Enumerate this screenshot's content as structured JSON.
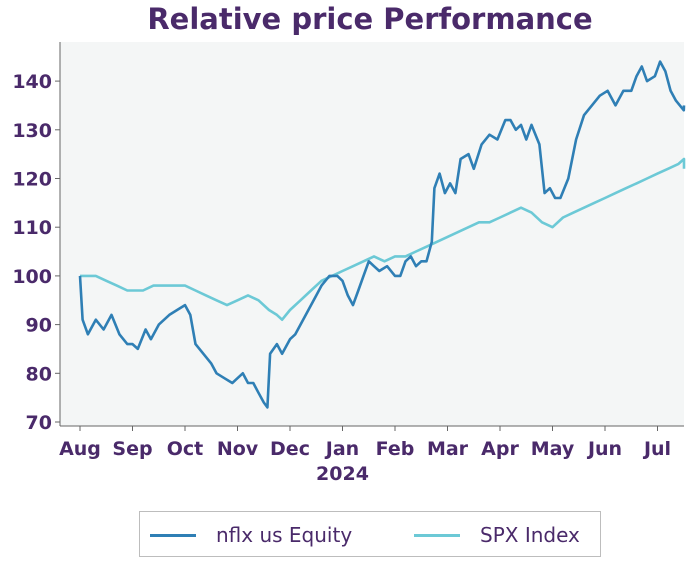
{
  "chart_data": {
    "type": "line",
    "title": "Relative price Performance",
    "xlabel": "",
    "ylabel": "",
    "ylim": [
      70,
      145
    ],
    "yticks": [
      70,
      80,
      90,
      100,
      110,
      120,
      130,
      140
    ],
    "x_ticks": [
      "Aug",
      "Sep",
      "Oct",
      "Nov",
      "Dec",
      "Jan",
      "Feb",
      "Mar",
      "Apr",
      "May",
      "Jun",
      "Jul"
    ],
    "x_year_label": "2024",
    "grid": false,
    "legend": "bottom-center",
    "series": [
      {
        "name": "nflx us Equity",
        "color": "#2f7fb5",
        "points": [
          [
            0,
            100
          ],
          [
            0.05,
            91
          ],
          [
            0.15,
            88
          ],
          [
            0.3,
            91
          ],
          [
            0.45,
            89
          ],
          [
            0.6,
            92
          ],
          [
            0.75,
            88
          ],
          [
            0.9,
            86
          ],
          [
            1.0,
            86
          ],
          [
            1.1,
            85
          ],
          [
            1.25,
            89
          ],
          [
            1.35,
            87
          ],
          [
            1.5,
            90
          ],
          [
            1.7,
            92
          ],
          [
            1.85,
            93
          ],
          [
            2.0,
            94
          ],
          [
            2.1,
            92
          ],
          [
            2.2,
            86
          ],
          [
            2.35,
            84
          ],
          [
            2.5,
            82
          ],
          [
            2.6,
            80
          ],
          [
            2.75,
            79
          ],
          [
            2.9,
            78
          ],
          [
            3.0,
            79
          ],
          [
            3.1,
            80
          ],
          [
            3.2,
            78
          ],
          [
            3.3,
            78
          ],
          [
            3.4,
            76
          ],
          [
            3.5,
            74
          ],
          [
            3.57,
            73
          ],
          [
            3.62,
            84
          ],
          [
            3.75,
            86
          ],
          [
            3.85,
            84
          ],
          [
            4.0,
            87
          ],
          [
            4.1,
            88
          ],
          [
            4.2,
            90
          ],
          [
            4.35,
            93
          ],
          [
            4.5,
            96
          ],
          [
            4.6,
            98
          ],
          [
            4.75,
            100
          ],
          [
            4.9,
            100
          ],
          [
            5.0,
            99
          ],
          [
            5.1,
            96
          ],
          [
            5.2,
            94
          ],
          [
            5.3,
            97
          ],
          [
            5.4,
            100
          ],
          [
            5.5,
            103
          ],
          [
            5.6,
            102
          ],
          [
            5.7,
            101
          ],
          [
            5.85,
            102
          ],
          [
            6.0,
            100
          ],
          [
            6.1,
            100
          ],
          [
            6.2,
            103
          ],
          [
            6.3,
            104
          ],
          [
            6.4,
            102
          ],
          [
            6.5,
            103
          ],
          [
            6.6,
            103
          ],
          [
            6.7,
            107
          ],
          [
            6.75,
            118
          ],
          [
            6.85,
            121
          ],
          [
            6.95,
            117
          ],
          [
            7.05,
            119
          ],
          [
            7.15,
            117
          ],
          [
            7.25,
            124
          ],
          [
            7.4,
            125
          ],
          [
            7.5,
            122
          ],
          [
            7.65,
            127
          ],
          [
            7.8,
            129
          ],
          [
            7.95,
            128
          ],
          [
            8.1,
            132
          ],
          [
            8.2,
            132
          ],
          [
            8.3,
            130
          ],
          [
            8.4,
            131
          ],
          [
            8.5,
            128
          ],
          [
            8.6,
            131
          ],
          [
            8.75,
            127
          ],
          [
            8.85,
            117
          ],
          [
            8.95,
            118
          ],
          [
            9.05,
            116
          ],
          [
            9.15,
            116
          ],
          [
            9.3,
            120
          ],
          [
            9.45,
            128
          ],
          [
            9.6,
            133
          ],
          [
            9.75,
            135
          ],
          [
            9.9,
            137
          ],
          [
            10.05,
            138
          ],
          [
            10.2,
            135
          ],
          [
            10.35,
            138
          ],
          [
            10.5,
            138
          ],
          [
            10.6,
            141
          ],
          [
            10.7,
            143
          ],
          [
            10.8,
            140
          ],
          [
            10.95,
            141
          ],
          [
            11.05,
            144
          ],
          [
            11.15,
            142
          ],
          [
            11.25,
            138
          ],
          [
            11.35,
            136
          ],
          [
            11.5,
            134
          ],
          [
            11.68,
            135
          ]
        ]
      },
      {
        "name": "SPX Index",
        "color": "#6cc9d6",
        "points": [
          [
            0,
            100
          ],
          [
            0.3,
            100
          ],
          [
            0.5,
            99
          ],
          [
            0.7,
            98
          ],
          [
            0.9,
            97
          ],
          [
            1.0,
            97
          ],
          [
            1.2,
            97
          ],
          [
            1.4,
            98
          ],
          [
            1.6,
            98
          ],
          [
            1.8,
            98
          ],
          [
            2.0,
            98
          ],
          [
            2.2,
            97
          ],
          [
            2.4,
            96
          ],
          [
            2.6,
            95
          ],
          [
            2.8,
            94
          ],
          [
            3.0,
            95
          ],
          [
            3.2,
            96
          ],
          [
            3.4,
            95
          ],
          [
            3.6,
            93
          ],
          [
            3.75,
            92
          ],
          [
            3.85,
            91
          ],
          [
            4.0,
            93
          ],
          [
            4.2,
            95
          ],
          [
            4.4,
            97
          ],
          [
            4.6,
            99
          ],
          [
            4.8,
            100
          ],
          [
            5.0,
            101
          ],
          [
            5.2,
            102
          ],
          [
            5.4,
            103
          ],
          [
            5.6,
            104
          ],
          [
            5.8,
            103
          ],
          [
            6.0,
            104
          ],
          [
            6.2,
            104
          ],
          [
            6.4,
            105
          ],
          [
            6.6,
            106
          ],
          [
            6.8,
            107
          ],
          [
            7.0,
            108
          ],
          [
            7.2,
            109
          ],
          [
            7.4,
            110
          ],
          [
            7.6,
            111
          ],
          [
            7.8,
            111
          ],
          [
            8.0,
            112
          ],
          [
            8.2,
            113
          ],
          [
            8.4,
            114
          ],
          [
            8.6,
            113
          ],
          [
            8.8,
            111
          ],
          [
            9.0,
            110
          ],
          [
            9.2,
            112
          ],
          [
            9.4,
            113
          ],
          [
            9.6,
            114
          ],
          [
            9.8,
            115
          ],
          [
            10.0,
            116
          ],
          [
            10.2,
            117
          ],
          [
            10.4,
            118
          ],
          [
            10.6,
            119
          ],
          [
            10.8,
            120
          ],
          [
            11.0,
            121
          ],
          [
            11.2,
            122
          ],
          [
            11.4,
            123
          ],
          [
            11.55,
            124
          ],
          [
            11.68,
            122
          ]
        ]
      }
    ]
  },
  "legend": {
    "items": [
      {
        "label": "nflx us Equity",
        "color": "#2f7fb5"
      },
      {
        "label": "SPX Index",
        "color": "#6cc9d6"
      }
    ]
  }
}
